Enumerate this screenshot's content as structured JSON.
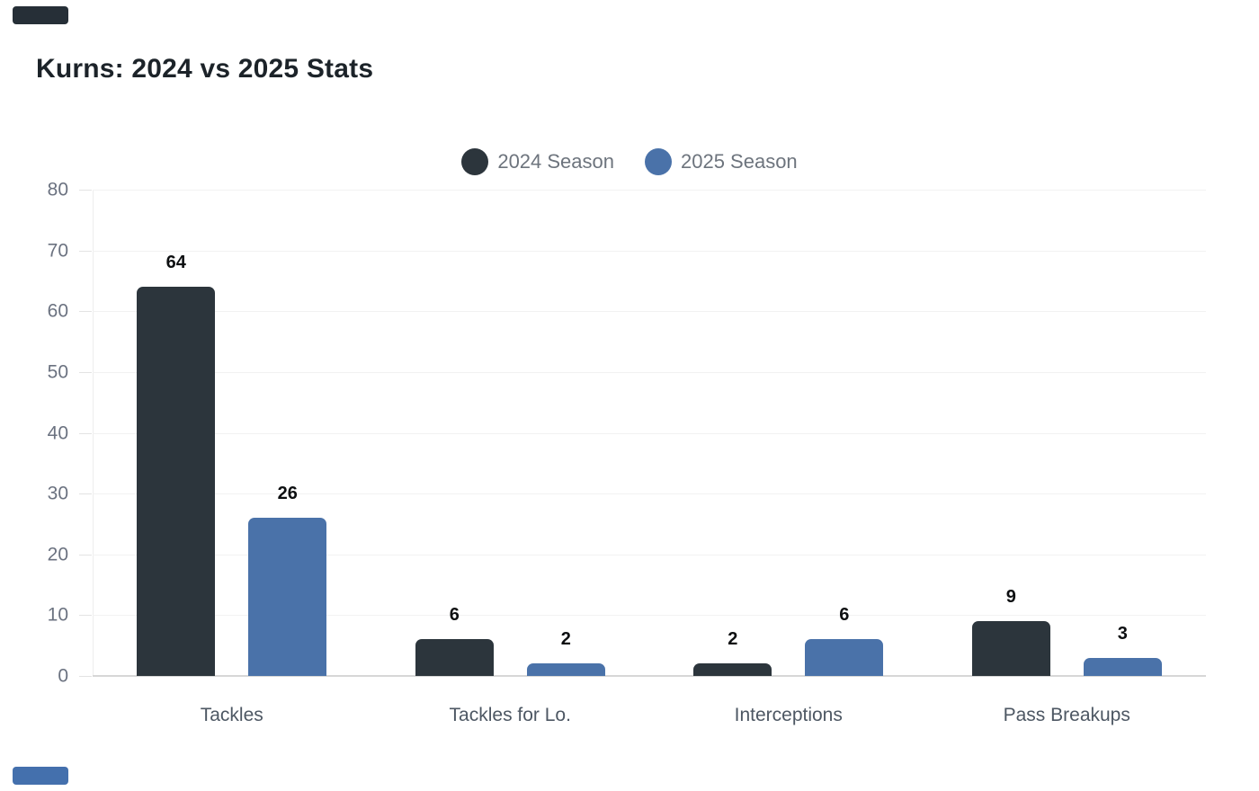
{
  "page": {
    "background": "#ffffff",
    "corner_chips": {
      "top": {
        "name": "color-chip-2024",
        "color": "#262f37"
      },
      "bottom": {
        "name": "color-chip-2025",
        "color": "#4470ad"
      }
    }
  },
  "chart_data": {
    "type": "bar",
    "title": "Kurns: 2024 vs 2025 Stats",
    "categories": [
      "Tackles",
      "Tackles for Lo.",
      "Interceptions",
      "Pass Breakups"
    ],
    "series": [
      {
        "name": "2024 Season",
        "color": "#2c353c",
        "values": [
          64,
          6,
          2,
          9
        ]
      },
      {
        "name": "2025 Season",
        "color": "#4a72a9",
        "values": [
          26,
          2,
          6,
          3
        ]
      }
    ],
    "xlabel": "",
    "ylabel": "",
    "ylim": [
      0,
      80
    ],
    "yticks": [
      0,
      10,
      20,
      30,
      40,
      50,
      60,
      70,
      80
    ],
    "grid": true,
    "legend_position": "top-center",
    "value_labels": true,
    "colors": {
      "title_text": "#1c2329",
      "legend_text": "#6d747d",
      "tick_text": "#6b7280",
      "category_text": "#4d5763",
      "value_text": "#0d0f11",
      "gridline": "#f2f2f2",
      "baseline": "#d7d7d7"
    }
  }
}
